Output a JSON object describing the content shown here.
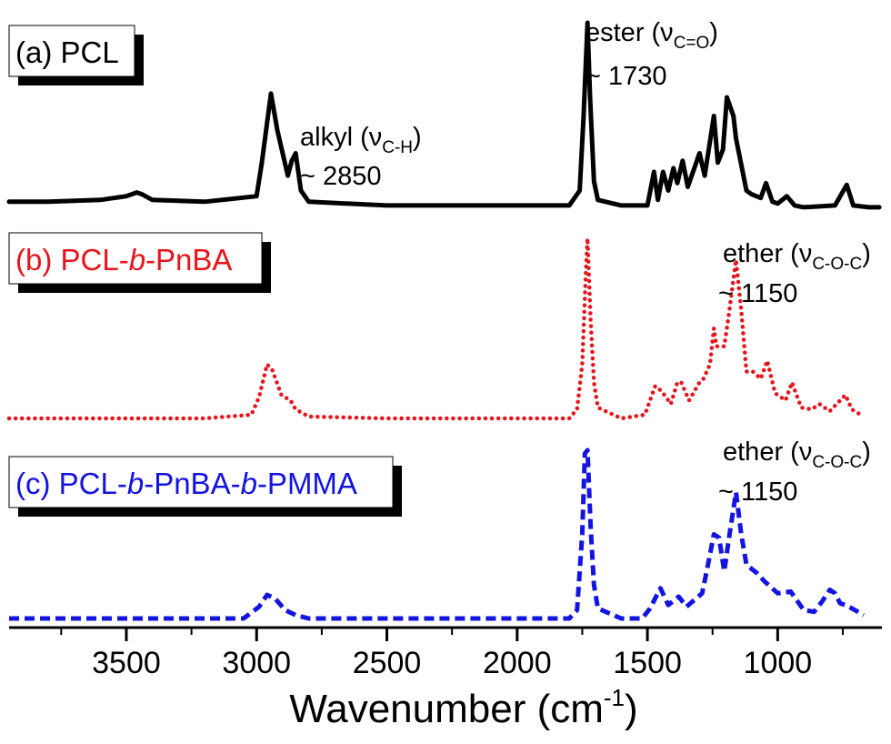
{
  "chart_data": {
    "type": "line",
    "title": "",
    "xlabel": "Wavenumber (cm",
    "xlabel_sup": "-1",
    "xlabel_close": ")",
    "ylabel": "",
    "xlim": [
      3950,
      600
    ],
    "x_reversed": true,
    "x_ticks": [
      3500,
      3000,
      2500,
      2000,
      1500,
      1000
    ],
    "y_ticks_shown": false,
    "series": [
      {
        "name": "(a) PCL",
        "color": "#000000",
        "dash": "solid",
        "points": [
          [
            3950,
            0.04
          ],
          [
            3800,
            0.04
          ],
          [
            3600,
            0.05
          ],
          [
            3500,
            0.07
          ],
          [
            3460,
            0.09
          ],
          [
            3440,
            0.08
          ],
          [
            3400,
            0.05
          ],
          [
            3200,
            0.04
          ],
          [
            3000,
            0.07
          ],
          [
            2980,
            0.25
          ],
          [
            2945,
            0.62
          ],
          [
            2920,
            0.42
          ],
          [
            2880,
            0.18
          ],
          [
            2865,
            0.26
          ],
          [
            2850,
            0.3
          ],
          [
            2830,
            0.1
          ],
          [
            2800,
            0.04
          ],
          [
            2500,
            0.02
          ],
          [
            2200,
            0.02
          ],
          [
            2000,
            0.02
          ],
          [
            1800,
            0.02
          ],
          [
            1760,
            0.1
          ],
          [
            1745,
            0.5
          ],
          [
            1730,
            1.0
          ],
          [
            1720,
            0.6
          ],
          [
            1705,
            0.15
          ],
          [
            1690,
            0.05
          ],
          [
            1600,
            0.02
          ],
          [
            1500,
            0.02
          ],
          [
            1475,
            0.2
          ],
          [
            1460,
            0.05
          ],
          [
            1440,
            0.2
          ],
          [
            1420,
            0.1
          ],
          [
            1400,
            0.22
          ],
          [
            1385,
            0.14
          ],
          [
            1365,
            0.26
          ],
          [
            1345,
            0.12
          ],
          [
            1300,
            0.3
          ],
          [
            1280,
            0.18
          ],
          [
            1245,
            0.5
          ],
          [
            1230,
            0.25
          ],
          [
            1210,
            0.32
          ],
          [
            1195,
            0.6
          ],
          [
            1170,
            0.5
          ],
          [
            1160,
            0.38
          ],
          [
            1120,
            0.1
          ],
          [
            1100,
            0.08
          ],
          [
            1065,
            0.06
          ],
          [
            1045,
            0.14
          ],
          [
            1020,
            0.04
          ],
          [
            1000,
            0.03
          ],
          [
            965,
            0.07
          ],
          [
            935,
            0.02
          ],
          [
            900,
            0.01
          ],
          [
            780,
            0.02
          ],
          [
            735,
            0.13
          ],
          [
            710,
            0.02
          ],
          [
            650,
            0.01
          ],
          [
            610,
            0.01
          ]
        ]
      },
      {
        "name": "(b) PCL-b-PnBA",
        "color": "#e8141c",
        "dash": "dotted",
        "points": [
          [
            3950,
            0.0
          ],
          [
            3500,
            0.0
          ],
          [
            3200,
            0.0
          ],
          [
            3020,
            0.02
          ],
          [
            2990,
            0.12
          ],
          [
            2960,
            0.3
          ],
          [
            2940,
            0.27
          ],
          [
            2905,
            0.13
          ],
          [
            2870,
            0.1
          ],
          [
            2850,
            0.05
          ],
          [
            2800,
            0.01
          ],
          [
            2500,
            0.0
          ],
          [
            2000,
            0.0
          ],
          [
            1800,
            0.0
          ],
          [
            1770,
            0.05
          ],
          [
            1750,
            0.3
          ],
          [
            1735,
            0.85
          ],
          [
            1730,
            1.0
          ],
          [
            1718,
            0.55
          ],
          [
            1705,
            0.2
          ],
          [
            1690,
            0.06
          ],
          [
            1600,
            0.0
          ],
          [
            1510,
            0.02
          ],
          [
            1470,
            0.18
          ],
          [
            1445,
            0.15
          ],
          [
            1410,
            0.08
          ],
          [
            1385,
            0.2
          ],
          [
            1370,
            0.2
          ],
          [
            1340,
            0.1
          ],
          [
            1300,
            0.2
          ],
          [
            1285,
            0.22
          ],
          [
            1260,
            0.3
          ],
          [
            1245,
            0.5
          ],
          [
            1235,
            0.4
          ],
          [
            1225,
            0.4
          ],
          [
            1205,
            0.4
          ],
          [
            1190,
            0.55
          ],
          [
            1160,
            0.88
          ],
          [
            1140,
            0.6
          ],
          [
            1120,
            0.26
          ],
          [
            1095,
            0.26
          ],
          [
            1065,
            0.22
          ],
          [
            1040,
            0.32
          ],
          [
            1010,
            0.14
          ],
          [
            970,
            0.1
          ],
          [
            945,
            0.2
          ],
          [
            910,
            0.06
          ],
          [
            870,
            0.05
          ],
          [
            840,
            0.08
          ],
          [
            800,
            0.04
          ],
          [
            760,
            0.1
          ],
          [
            740,
            0.13
          ],
          [
            715,
            0.05
          ],
          [
            670,
            0.01
          ]
        ]
      },
      {
        "name": "(c) PCL-b-PnBA-b-PMMA",
        "color": "#1414e0",
        "dash": "dashed",
        "points": [
          [
            3950,
            0.0
          ],
          [
            3500,
            0.0
          ],
          [
            3050,
            0.0
          ],
          [
            2990,
            0.07
          ],
          [
            2960,
            0.14
          ],
          [
            2930,
            0.12
          ],
          [
            2890,
            0.05
          ],
          [
            2850,
            0.02
          ],
          [
            2800,
            0.0
          ],
          [
            2500,
            0.0
          ],
          [
            2300,
            0.0
          ],
          [
            1800,
            0.0
          ],
          [
            1770,
            0.05
          ],
          [
            1750,
            0.5
          ],
          [
            1740,
            0.98
          ],
          [
            1730,
            1.0
          ],
          [
            1718,
            0.55
          ],
          [
            1705,
            0.2
          ],
          [
            1690,
            0.06
          ],
          [
            1600,
            0.0
          ],
          [
            1520,
            0.0
          ],
          [
            1490,
            0.06
          ],
          [
            1450,
            0.18
          ],
          [
            1420,
            0.08
          ],
          [
            1380,
            0.13
          ],
          [
            1350,
            0.07
          ],
          [
            1290,
            0.15
          ],
          [
            1270,
            0.3
          ],
          [
            1245,
            0.5
          ],
          [
            1225,
            0.48
          ],
          [
            1205,
            0.28
          ],
          [
            1185,
            0.5
          ],
          [
            1160,
            0.75
          ],
          [
            1140,
            0.5
          ],
          [
            1120,
            0.32
          ],
          [
            1080,
            0.27
          ],
          [
            1050,
            0.22
          ],
          [
            1000,
            0.15
          ],
          [
            950,
            0.16
          ],
          [
            900,
            0.05
          ],
          [
            860,
            0.04
          ],
          [
            830,
            0.1
          ],
          [
            800,
            0.17
          ],
          [
            780,
            0.15
          ],
          [
            760,
            0.09
          ],
          [
            740,
            0.08
          ],
          [
            715,
            0.06
          ],
          [
            670,
            0.02
          ]
        ]
      }
    ],
    "annotations": [
      {
        "id": "alkyl",
        "text_main": "alkyl (ν",
        "text_sub": "C-H",
        "text_close": ")",
        "value": "~ 2850"
      },
      {
        "id": "ester",
        "text_main": "ester (ν",
        "text_sub": "C=O",
        "text_close": ")",
        "value": "~ 1730"
      },
      {
        "id": "ether_b",
        "text_main": "ether (ν",
        "text_sub": "C-O-C",
        "text_close": ")",
        "value": "~ 1150"
      },
      {
        "id": "ether_c",
        "text_main": "ether (ν",
        "text_sub": "C-O-C",
        "text_close": ")",
        "value": "~ 1150"
      }
    ],
    "legend_boxes": [
      {
        "pre": "(a) PCL",
        "ital1": "",
        "mid": "",
        "ital2": "",
        "post": "",
        "color": "#000000"
      },
      {
        "pre": "(b) PCL-",
        "ital1": "b",
        "mid": "-PnBA",
        "ital2": "",
        "post": "",
        "color": "#e8141c"
      },
      {
        "pre": "(c) PCL-",
        "ital1": "b",
        "mid": "-PnBA-",
        "ital2": "b",
        "post": "-PMMA",
        "color": "#1414e0"
      }
    ]
  }
}
